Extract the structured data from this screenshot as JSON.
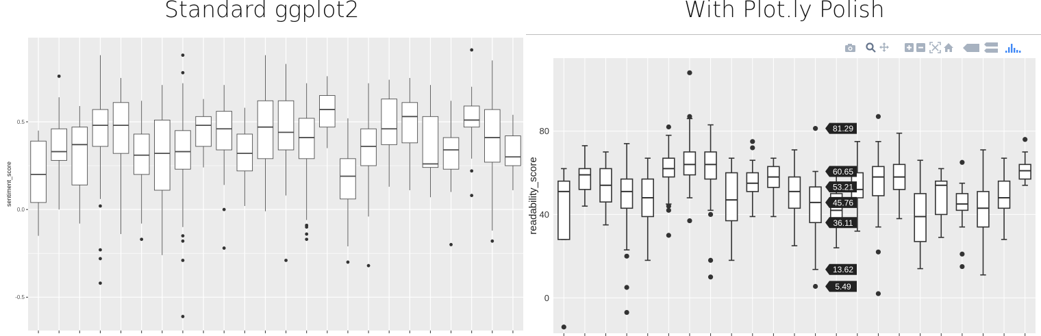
{
  "titles": {
    "left": "Standard ggplot2",
    "right": "With Plot.ly Polish"
  },
  "modebar_icons": [
    "camera-icon",
    "zoom-icon",
    "pan-icon",
    "zoom-in-icon",
    "zoom-out-icon",
    "autoscale-icon",
    "home-icon",
    "hover-closest-icon",
    "hover-compare-icon",
    "plotly-logo-icon"
  ],
  "colors": {
    "panel_bg": "#ebebeb",
    "grid": "#ffffff",
    "box_outline_left": "#4d4d4d",
    "box_outline_right": "#333333",
    "outlier": "#333333",
    "tooltip_bg": "#222222",
    "modebar": "#a7b2c0",
    "plotly_logo": "#3f88f6"
  },
  "chart_data": [
    {
      "type": "box",
      "title": "",
      "xlabel": "",
      "ylabel": "sentiment_score",
      "ylim": [
        -0.69,
        0.98
      ],
      "yticks": [
        -0.5,
        0.0,
        0.5
      ],
      "ytick_labels": [
        "-0.5",
        "0.0",
        "0.5"
      ],
      "grid": true,
      "boxes": [
        {
          "low": -0.15,
          "q1": 0.04,
          "median": 0.2,
          "q3": 0.39,
          "high": 0.45,
          "outliers": []
        },
        {
          "low": 0.0,
          "q1": 0.28,
          "median": 0.33,
          "q3": 0.46,
          "high": 0.64,
          "outliers": [
            0.76
          ]
        },
        {
          "low": -0.08,
          "q1": 0.14,
          "median": 0.37,
          "q3": 0.47,
          "high": 0.59,
          "outliers": []
        },
        {
          "low": 0.06,
          "q1": 0.36,
          "median": 0.48,
          "q3": 0.57,
          "high": 0.88,
          "outliers": [
            0.02,
            -0.23,
            -0.28,
            -0.42
          ]
        },
        {
          "low": -0.14,
          "q1": 0.32,
          "median": 0.48,
          "q3": 0.61,
          "high": 0.75,
          "outliers": []
        },
        {
          "low": -0.08,
          "q1": 0.2,
          "median": 0.31,
          "q3": 0.43,
          "high": 0.62,
          "outliers": [
            -0.17
          ]
        },
        {
          "low": -0.26,
          "q1": 0.11,
          "median": 0.32,
          "q3": 0.51,
          "high": 0.71,
          "outliers": []
        },
        {
          "low": -0.1,
          "q1": 0.23,
          "median": 0.33,
          "q3": 0.45,
          "high": 0.72,
          "outliers": [
            0.88,
            0.78,
            -0.15,
            -0.18,
            -0.29,
            -0.61
          ]
        },
        {
          "low": 0.24,
          "q1": 0.36,
          "median": 0.48,
          "q3": 0.53,
          "high": 0.63,
          "outliers": []
        },
        {
          "low": 0.14,
          "q1": 0.34,
          "median": 0.46,
          "q3": 0.56,
          "high": 0.71,
          "outliers": [
            0.0,
            -0.22
          ]
        },
        {
          "low": 0.02,
          "q1": 0.22,
          "median": 0.32,
          "q3": 0.43,
          "high": 0.58,
          "outliers": []
        },
        {
          "low": -0.01,
          "q1": 0.29,
          "median": 0.47,
          "q3": 0.62,
          "high": 0.88,
          "outliers": []
        },
        {
          "low": 0.08,
          "q1": 0.34,
          "median": 0.44,
          "q3": 0.62,
          "high": 0.83,
          "outliers": [
            -0.29
          ]
        },
        {
          "low": -0.06,
          "q1": 0.29,
          "median": 0.41,
          "q3": 0.52,
          "high": 0.72,
          "outliers": [
            -0.09,
            -0.1,
            -0.14,
            -0.17
          ]
        },
        {
          "low": 0.35,
          "q1": 0.47,
          "median": 0.57,
          "q3": 0.65,
          "high": 0.76,
          "outliers": []
        },
        {
          "low": -0.21,
          "q1": 0.06,
          "median": 0.19,
          "q3": 0.29,
          "high": 0.52,
          "outliers": [
            -0.3
          ]
        },
        {
          "low": -0.04,
          "q1": 0.25,
          "median": 0.36,
          "q3": 0.46,
          "high": 0.72,
          "outliers": [
            -0.32
          ]
        },
        {
          "low": 0.13,
          "q1": 0.37,
          "median": 0.46,
          "q3": 0.63,
          "high": 0.74,
          "outliers": []
        },
        {
          "low": 0.11,
          "q1": 0.38,
          "median": 0.53,
          "q3": 0.61,
          "high": 0.75,
          "outliers": []
        },
        {
          "low": 0.07,
          "q1": 0.24,
          "median": 0.26,
          "q3": 0.53,
          "high": 0.71,
          "outliers": []
        },
        {
          "low": 0.1,
          "q1": 0.23,
          "median": 0.34,
          "q3": 0.41,
          "high": 0.62,
          "outliers": [
            -0.2
          ]
        },
        {
          "low": 0.29,
          "q1": 0.47,
          "median": 0.51,
          "q3": 0.59,
          "high": 0.7,
          "outliers": [
            0.91,
            0.22,
            0.08
          ]
        },
        {
          "low": -0.12,
          "q1": 0.27,
          "median": 0.41,
          "q3": 0.57,
          "high": 0.85,
          "outliers": [
            -0.18
          ]
        },
        {
          "low": 0.11,
          "q1": 0.25,
          "median": 0.3,
          "q3": 0.42,
          "high": 0.54,
          "outliers": []
        }
      ]
    },
    {
      "type": "box",
      "title": "",
      "xlabel": "",
      "ylabel": "readability_score",
      "ylim": [
        -17,
        115
      ],
      "yticks": [
        0,
        40,
        80
      ],
      "ytick_labels": [
        "0",
        "40",
        "80"
      ],
      "grid": true,
      "hover_labels": [
        "81.29",
        "60.65",
        "53.21",
        "45.76",
        "36.11",
        "13.62",
        "5.49"
      ],
      "hover_box_index": 12,
      "boxes": [
        {
          "low": 28,
          "q1": 28,
          "median": 51,
          "q3": 56,
          "high": 62,
          "outliers": [
            -14
          ]
        },
        {
          "low": 44,
          "q1": 52,
          "median": 59,
          "q3": 62,
          "high": 73,
          "outliers": []
        },
        {
          "low": 35,
          "q1": 46,
          "median": 54,
          "q3": 62,
          "high": 70,
          "outliers": []
        },
        {
          "low": 23,
          "q1": 43,
          "median": 51,
          "q3": 57,
          "high": 74,
          "outliers": [
            20,
            5,
            -7
          ]
        },
        {
          "low": 18,
          "q1": 39,
          "median": 48,
          "q3": 57,
          "high": 67,
          "outliers": []
        },
        {
          "low": 45,
          "q1": 58,
          "median": 62,
          "q3": 67,
          "high": 78,
          "outliers": [
            82,
            44,
            42,
            30
          ]
        },
        {
          "low": 48,
          "q1": 59,
          "median": 64,
          "q3": 70,
          "high": 86,
          "outliers": [
            108,
            87,
            37
          ]
        },
        {
          "low": 42,
          "q1": 57,
          "median": 64,
          "q3": 70,
          "high": 83,
          "outliers": [
            40,
            18,
            10
          ]
        },
        {
          "low": 18,
          "q1": 37,
          "median": 47,
          "q3": 60,
          "high": 67,
          "outliers": []
        },
        {
          "low": 39,
          "q1": 51,
          "median": 55,
          "q3": 60,
          "high": 66,
          "outliers": [
            75,
            72
          ]
        },
        {
          "low": 39,
          "q1": 53,
          "median": 58,
          "q3": 63,
          "high": 67,
          "outliers": []
        },
        {
          "low": 25,
          "q1": 43,
          "median": 51,
          "q3": 58,
          "high": 71,
          "outliers": []
        },
        {
          "low": 13.62,
          "q1": 36.11,
          "median": 45.76,
          "q3": 53.21,
          "high": 60.65,
          "outliers": [
            81.29,
            5.49
          ]
        },
        {
          "low": 24,
          "q1": 36,
          "median": 42,
          "q3": 50,
          "high": 63,
          "outliers": []
        },
        {
          "low": 32,
          "q1": 48,
          "median": 52,
          "q3": 60,
          "high": 75,
          "outliers": []
        },
        {
          "low": 34,
          "q1": 49,
          "median": 58,
          "q3": 63,
          "high": 75,
          "outliers": [
            87,
            22,
            2
          ]
        },
        {
          "low": 38,
          "q1": 52,
          "median": 58,
          "q3": 64,
          "high": 79,
          "outliers": []
        },
        {
          "low": 14,
          "q1": 27,
          "median": 39,
          "q3": 50,
          "high": 66,
          "outliers": []
        },
        {
          "low": 29,
          "q1": 40,
          "median": 54,
          "q3": 56,
          "high": 62,
          "outliers": []
        },
        {
          "low": 34,
          "q1": 42,
          "median": 45,
          "q3": 50,
          "high": 55,
          "outliers": [
            65,
            21,
            15
          ]
        },
        {
          "low": 11,
          "q1": 34,
          "median": 43,
          "q3": 51,
          "high": 71,
          "outliers": []
        },
        {
          "low": 28,
          "q1": 43,
          "median": 48,
          "q3": 56,
          "high": 67,
          "outliers": []
        },
        {
          "low": 54,
          "q1": 57,
          "median": 61,
          "q3": 64,
          "high": 70,
          "outliers": [
            76
          ]
        }
      ]
    }
  ]
}
